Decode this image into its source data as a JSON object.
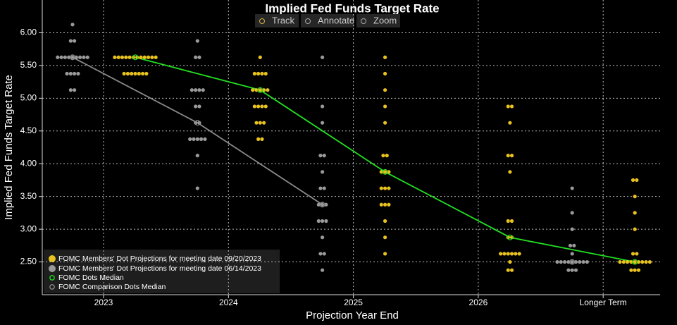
{
  "chart_data": {
    "type": "dot_plot",
    "title": "Implied Fed Funds Target Rate",
    "toolbar": [
      "Track",
      "Annotate",
      "Zoom"
    ],
    "x_label": "Projection Year End",
    "y_label": "Implied Fed Funds Target Rate",
    "categories": [
      "2023",
      "2024",
      "2025",
      "2026",
      "Longer Term"
    ],
    "ylim": [
      2.0,
      6.5
    ],
    "yticks": [
      {
        "value": 2.5,
        "label": "2.50"
      },
      {
        "value": 3.0,
        "label": "3.00"
      },
      {
        "value": 3.5,
        "label": "3.50"
      },
      {
        "value": 4.0,
        "label": "4.00"
      },
      {
        "value": 4.5,
        "label": "4.50"
      },
      {
        "value": 5.0,
        "label": "5.00"
      },
      {
        "value": 5.5,
        "label": "5.50"
      },
      {
        "value": 6.0,
        "label": "6.00"
      }
    ],
    "grid": true,
    "legend": "bottom-left",
    "series": [
      {
        "name": "FOMC Members' Dot Projections for meeting date 09/20/2023",
        "color": "#e8c21e",
        "dots": [
          [
            {
              "rate": 5.625,
              "count": 12
            },
            {
              "rate": 5.375,
              "count": 7
            }
          ],
          [
            {
              "rate": 5.625,
              "count": 1
            },
            {
              "rate": 5.375,
              "count": 4
            },
            {
              "rate": 5.125,
              "count": 5
            },
            {
              "rate": 4.875,
              "count": 4
            },
            {
              "rate": 4.625,
              "count": 3
            },
            {
              "rate": 4.375,
              "count": 2
            }
          ],
          [
            {
              "rate": 5.625,
              "count": 1
            },
            {
              "rate": 5.375,
              "count": 1
            },
            {
              "rate": 5.125,
              "count": 1
            },
            {
              "rate": 4.875,
              "count": 1
            },
            {
              "rate": 4.625,
              "count": 1
            },
            {
              "rate": 4.125,
              "count": 2
            },
            {
              "rate": 3.875,
              "count": 3
            },
            {
              "rate": 3.625,
              "count": 3
            },
            {
              "rate": 3.375,
              "count": 3
            },
            {
              "rate": 3.125,
              "count": 1
            },
            {
              "rate": 2.875,
              "count": 1
            },
            {
              "rate": 2.625,
              "count": 1
            }
          ],
          [
            {
              "rate": 4.875,
              "count": 2
            },
            {
              "rate": 4.625,
              "count": 1
            },
            {
              "rate": 4.125,
              "count": 2
            },
            {
              "rate": 3.875,
              "count": 1
            },
            {
              "rate": 3.125,
              "count": 2
            },
            {
              "rate": 2.875,
              "count": 2
            },
            {
              "rate": 2.625,
              "count": 6
            },
            {
              "rate": 2.5,
              "count": 1
            },
            {
              "rate": 2.375,
              "count": 2
            }
          ],
          [
            {
              "rate": 3.75,
              "count": 2
            },
            {
              "rate": 3.5,
              "count": 1
            },
            {
              "rate": 3.25,
              "count": 1
            },
            {
              "rate": 3.0,
              "count": 1
            },
            {
              "rate": 2.625,
              "count": 2
            },
            {
              "rate": 2.5,
              "count": 9
            },
            {
              "rate": 2.375,
              "count": 3
            }
          ]
        ]
      },
      {
        "name": "FOMC Members' Dot Projections for meeting date 06/14/2023",
        "color": "#9a9a9a",
        "dots": [
          [
            {
              "rate": 6.125,
              "count": 1
            },
            {
              "rate": 5.875,
              "count": 2
            },
            {
              "rate": 5.625,
              "count": 9
            },
            {
              "rate": 5.375,
              "count": 4
            },
            {
              "rate": 5.125,
              "count": 2
            }
          ],
          [
            {
              "rate": 5.875,
              "count": 1
            },
            {
              "rate": 5.625,
              "count": 2
            },
            {
              "rate": 5.125,
              "count": 4
            },
            {
              "rate": 4.875,
              "count": 2
            },
            {
              "rate": 4.625,
              "count": 2
            },
            {
              "rate": 4.375,
              "count": 5
            },
            {
              "rate": 4.125,
              "count": 1
            },
            {
              "rate": 3.625,
              "count": 1
            }
          ],
          [
            {
              "rate": 5.625,
              "count": 1
            },
            {
              "rate": 4.875,
              "count": 1
            },
            {
              "rate": 4.625,
              "count": 1
            },
            {
              "rate": 4.125,
              "count": 2
            },
            {
              "rate": 3.875,
              "count": 1
            },
            {
              "rate": 3.625,
              "count": 2
            },
            {
              "rate": 3.375,
              "count": 3
            },
            {
              "rate": 3.125,
              "count": 3
            },
            {
              "rate": 2.875,
              "count": 1
            },
            {
              "rate": 2.625,
              "count": 2
            },
            {
              "rate": 2.375,
              "count": 1
            }
          ],
          [],
          [
            {
              "rate": 3.625,
              "count": 1
            },
            {
              "rate": 3.25,
              "count": 1
            },
            {
              "rate": 3.0,
              "count": 1
            },
            {
              "rate": 2.75,
              "count": 2
            },
            {
              "rate": 2.625,
              "count": 1
            },
            {
              "rate": 2.5,
              "count": 9
            },
            {
              "rate": 2.375,
              "count": 3
            }
          ]
        ]
      }
    ],
    "medians": [
      {
        "name": "FOMC Dots Median",
        "color": "#22e022",
        "values": [
          5.625,
          5.125,
          3.875,
          2.875,
          2.5
        ]
      },
      {
        "name": "FOMC Comparison Dots Median",
        "color": "#8a8a8a",
        "values": [
          5.625,
          4.625,
          3.375,
          null,
          2.5
        ]
      }
    ]
  }
}
